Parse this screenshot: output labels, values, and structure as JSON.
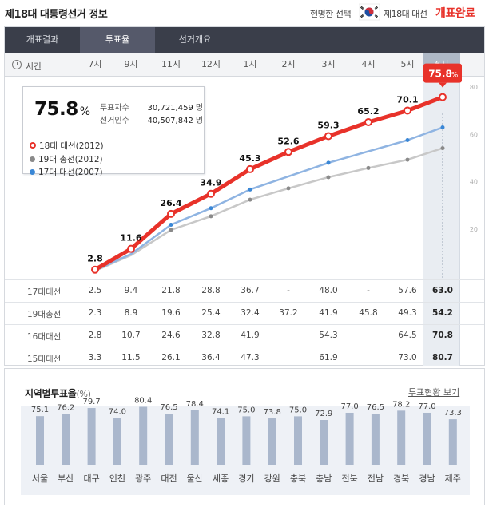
{
  "header": {
    "title": "제18대 대통령선거 정보",
    "brand": "현명한 선택",
    "election": "제18대 대선",
    "status": "개표완료"
  },
  "tabs": [
    {
      "label": "개표결과",
      "active": false
    },
    {
      "label": "투표율",
      "active": true
    },
    {
      "label": "선거개요",
      "active": false
    }
  ],
  "hour_bar": {
    "label": "시간",
    "hours": [
      "7시",
      "9시",
      "11시",
      "12시",
      "1시",
      "2시",
      "3시",
      "4시",
      "5시",
      "6시"
    ],
    "selected_index": 9
  },
  "info": {
    "turnout": "75.8",
    "turnout_unit": "%",
    "voters_label": "투표자수",
    "voters_value": "30,721,459",
    "voters_unit": "명",
    "electors_label": "선거인수",
    "electors_value": "40,507,842",
    "electors_unit": "명"
  },
  "chart_data": {
    "type": "line",
    "x": [
      "7시",
      "9시",
      "11시",
      "12시",
      "1시",
      "2시",
      "3시",
      "4시",
      "5시",
      "6시"
    ],
    "y_ticks": [
      20,
      40,
      60,
      80
    ],
    "ylim": [
      0,
      85
    ],
    "series": [
      {
        "name": "18대 대선(2012)",
        "color": "#e8322a",
        "values": [
          2.8,
          11.6,
          26.4,
          34.9,
          45.3,
          52.6,
          59.3,
          65.2,
          70.1,
          75.8
        ],
        "labels": [
          "2.8",
          "11.6",
          "26.4",
          "34.9",
          "45.3",
          "52.6",
          "59.3",
          "65.2",
          "70.1",
          "75.8"
        ]
      },
      {
        "name": "19대 총선(2012)",
        "color": "#8a8a8a",
        "values": [
          2.3,
          8.9,
          19.6,
          25.4,
          32.4,
          37.2,
          41.9,
          45.8,
          49.3,
          54.2
        ]
      },
      {
        "name": "17대 대선(2007)",
        "color": "#3a87d6",
        "values": [
          2.5,
          9.4,
          21.8,
          28.8,
          36.7,
          null,
          48.0,
          null,
          57.6,
          63.0
        ]
      }
    ],
    "callout": {
      "value": "75.8",
      "unit": "%"
    }
  },
  "table": {
    "rows": [
      {
        "label": "17대대선",
        "values": [
          "2.5",
          "9.4",
          "21.8",
          "28.8",
          "36.7",
          "-",
          "48.0",
          "-",
          "57.6",
          "63.0"
        ]
      },
      {
        "label": "19대총선",
        "values": [
          "2.3",
          "8.9",
          "19.6",
          "25.4",
          "32.4",
          "37.2",
          "41.9",
          "45.8",
          "49.3",
          "54.2"
        ]
      },
      {
        "label": "16대대선",
        "values": [
          "2.8",
          "10.7",
          "24.6",
          "32.8",
          "41.9",
          "",
          "54.3",
          "",
          "64.5",
          "70.8"
        ]
      },
      {
        "label": "15대대선",
        "values": [
          "3.3",
          "11.5",
          "26.1",
          "36.4",
          "47.3",
          "",
          "61.9",
          "",
          "73.0",
          "80.7"
        ]
      }
    ]
  },
  "region": {
    "title": "지역별투표율",
    "unit": "(%)",
    "link": "투표현황 보기",
    "chart_data": {
      "type": "bar",
      "categories": [
        "서울",
        "부산",
        "대구",
        "인천",
        "광주",
        "대전",
        "울산",
        "세종",
        "경기",
        "강원",
        "충북",
        "충남",
        "전북",
        "전남",
        "경북",
        "경남",
        "제주"
      ],
      "values": [
        75.1,
        76.2,
        79.7,
        74.0,
        80.4,
        76.5,
        78.4,
        74.1,
        75.0,
        73.8,
        75.0,
        72.9,
        77.0,
        76.5,
        78.2,
        77.0,
        73.3
      ],
      "labels": [
        "75.1",
        "76.2",
        "79.7",
        "74.0",
        "80.4",
        "76.5",
        "78.4",
        "74.1",
        "75.0",
        "73.8",
        "75.0",
        "72.9",
        "77.0",
        "76.5",
        "78.2",
        "77.0",
        "73.3"
      ]
    }
  },
  "colors": {
    "accent": "#e8322a",
    "tab_bg": "#3a3e4a",
    "tab_active": "#55596a",
    "selected_col": "#e9edf2",
    "bar": "#aab7cc"
  }
}
